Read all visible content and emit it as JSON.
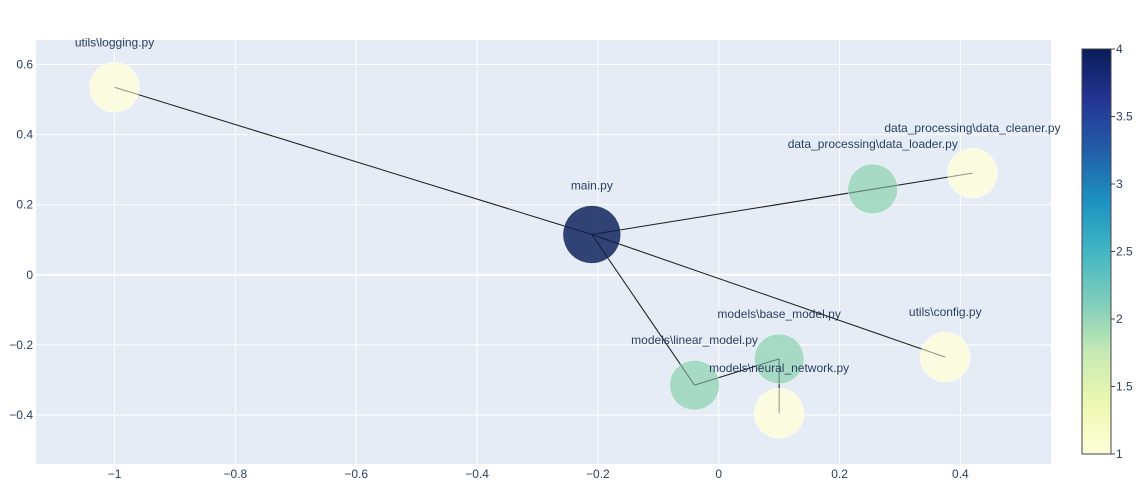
{
  "chart_data": {
    "type": "scatter",
    "title": "",
    "xlabel": "",
    "ylabel": "",
    "xlim": [
      -1.13,
      0.55
    ],
    "ylim": [
      -0.54,
      0.67
    ],
    "x_ticks": [
      -1,
      -0.8,
      -0.6,
      -0.4,
      -0.2,
      0,
      0.2,
      0.4
    ],
    "x_tick_labels": [
      "−1",
      "−0.8",
      "−0.6",
      "−0.4",
      "−0.2",
      "0",
      "0.2",
      "0.4"
    ],
    "y_ticks": [
      -0.4,
      -0.2,
      0,
      0.2,
      0.4,
      0.6
    ],
    "y_tick_labels": [
      "−0.4",
      "−0.2",
      "0",
      "0.2",
      "0.4",
      "0.6"
    ],
    "grid": true,
    "nodes": [
      {
        "id": "main",
        "label": "main.py",
        "x": -0.21,
        "y": 0.115,
        "value": 4
      },
      {
        "id": "logging",
        "label": "utils\\logging.py",
        "x": -1.0,
        "y": 0.535,
        "value": 1
      },
      {
        "id": "data_loader",
        "label": "data_processing\\data_loader.py",
        "x": 0.255,
        "y": 0.245,
        "value": 2
      },
      {
        "id": "data_cleaner",
        "label": "data_processing\\data_cleaner.py",
        "x": 0.42,
        "y": 0.29,
        "value": 1
      },
      {
        "id": "config",
        "label": "utils\\config.py",
        "x": 0.375,
        "y": -0.235,
        "value": 1
      },
      {
        "id": "base_model",
        "label": "models\\base_model.py",
        "x": 0.1,
        "y": -0.24,
        "value": 2
      },
      {
        "id": "linear_model",
        "label": "models\\linear_model.py",
        "x": -0.04,
        "y": -0.315,
        "value": 2
      },
      {
        "id": "neural_network",
        "label": "models\\neural_network.py",
        "x": 0.1,
        "y": -0.395,
        "value": 1
      }
    ],
    "edges": [
      [
        "main",
        "logging"
      ],
      [
        "main",
        "data_cleaner"
      ],
      [
        "main",
        "config"
      ],
      [
        "main",
        "linear_model"
      ],
      [
        "linear_model",
        "base_model"
      ],
      [
        "base_model",
        "neural_network"
      ]
    ],
    "colorscale": {
      "min": 1,
      "max": 4,
      "stops": [
        "#ffffd9",
        "#edf8b1",
        "#c7e9b4",
        "#7fcdbb",
        "#41b6c4",
        "#1d91c0",
        "#225ea8",
        "#253494",
        "#081d58"
      ],
      "ticks": [
        1,
        1.5,
        2,
        2.5,
        3,
        3.5,
        4
      ],
      "tick_labels": [
        "1",
        "1.5",
        "2",
        "2.5",
        "3",
        "3.5",
        "4"
      ]
    },
    "colors": {
      "plot_bg": "#e5ecf6",
      "grid": "#ffffff",
      "edge": "#222222",
      "text": "#2a3f5f"
    }
  }
}
